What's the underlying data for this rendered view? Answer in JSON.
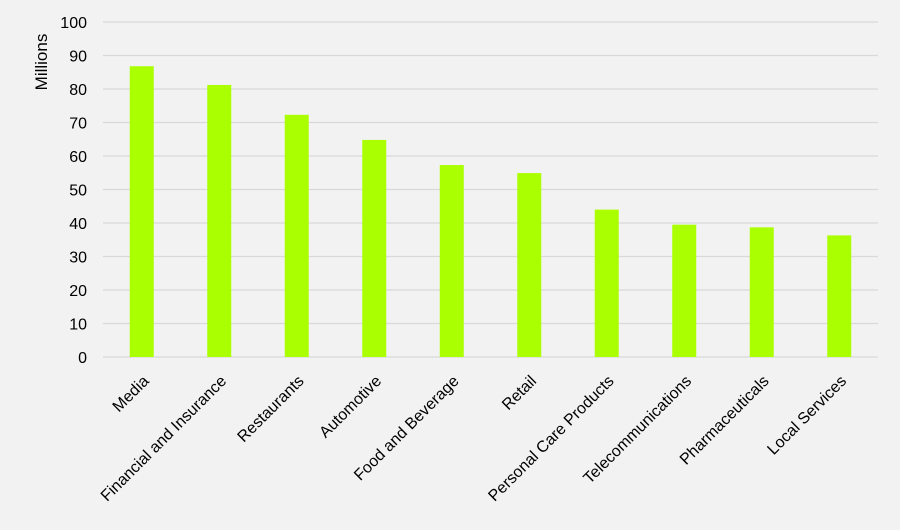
{
  "chart_data": {
    "type": "bar",
    "categories": [
      "Media",
      "Financial and Insurance",
      "Restaurants",
      "Automotive",
      "Food and Beverage",
      "Retail",
      "Personal Care Products",
      "Telecommunications",
      "Pharmaceuticals",
      "Local Services"
    ],
    "values": [
      86.8,
      81.2,
      72.3,
      64.8,
      57.3,
      54.9,
      44.0,
      39.5,
      38.7,
      36.3
    ],
    "title": "",
    "xlabel": "",
    "ylabel": "Millions",
    "ylim": [
      0,
      100
    ],
    "yticks": [
      "0",
      "10",
      "20",
      "30",
      "40",
      "50",
      "60",
      "70",
      "80",
      "90",
      "100"
    ],
    "grid": true,
    "legend": "none",
    "bar_color": "#aaff00",
    "grid_color": "#d9d9d9",
    "background": "#f2f2f2"
  }
}
